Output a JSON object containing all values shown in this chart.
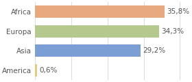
{
  "categories": [
    "Africa",
    "Europa",
    "Asia",
    "America"
  ],
  "values": [
    35.8,
    34.3,
    29.2,
    0.6
  ],
  "labels": [
    "35,8%",
    "34,3%",
    "29,2%",
    "0,6%"
  ],
  "bar_colors": [
    "#e8a97e",
    "#b5c98e",
    "#7b9fd4",
    "#e8c97e"
  ],
  "background_color": "#ffffff",
  "plot_bg_color": "#ffffff",
  "grid_color": "#dddddd",
  "xlim": [
    0,
    42
  ],
  "bar_height": 0.62,
  "label_fontsize": 7.5,
  "tick_fontsize": 7.5,
  "text_color": "#555555",
  "grid_xticks": [
    0,
    10,
    20,
    30,
    40
  ]
}
